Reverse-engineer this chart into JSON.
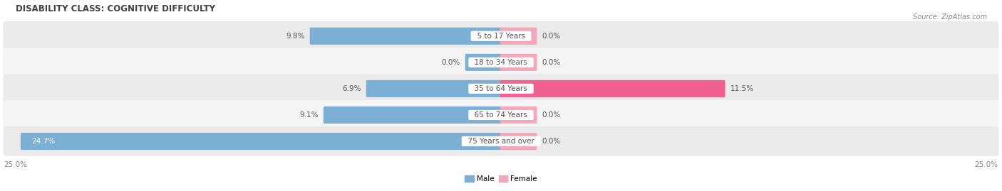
{
  "title": "DISABILITY CLASS: COGNITIVE DIFFICULTY",
  "source": "Source: ZipAtlas.com",
  "categories": [
    "5 to 17 Years",
    "18 to 34 Years",
    "35 to 64 Years",
    "65 to 74 Years",
    "75 Years and over"
  ],
  "male_values": [
    9.8,
    0.0,
    6.9,
    9.1,
    24.7
  ],
  "female_values": [
    0.0,
    0.0,
    11.5,
    0.0,
    0.0
  ],
  "max_value": 25.0,
  "male_color": "#7bafd4",
  "female_color": "#f4a7b9",
  "female_color_bright": "#f06090",
  "row_bg_even": "#ebebeb",
  "row_bg_odd": "#f5f5f5",
  "label_color": "#555555",
  "title_color": "#404040",
  "axis_label_color": "#888888",
  "min_bar_pct": 1.8,
  "label_fontsize": 7.5,
  "title_fontsize": 8.5
}
